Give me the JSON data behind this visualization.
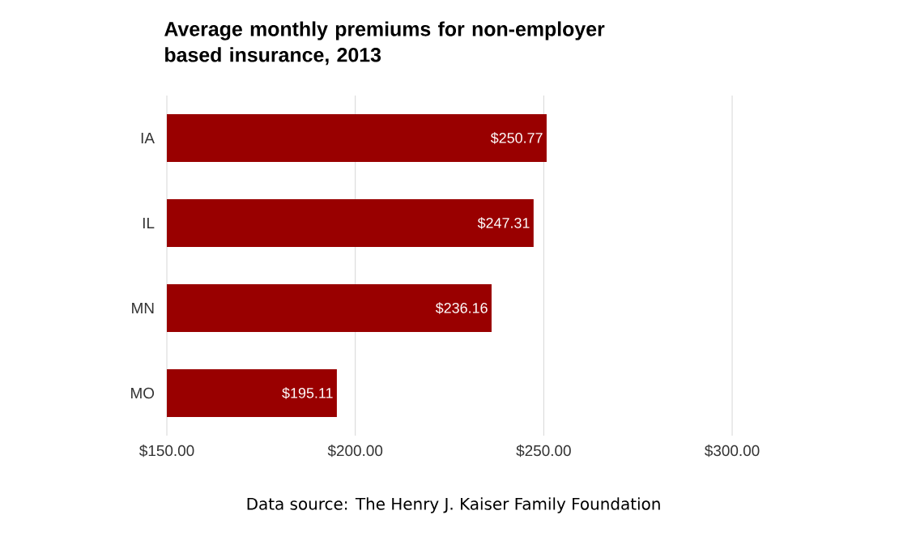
{
  "chart_data": {
    "type": "bar",
    "orientation": "horizontal",
    "title": "Average monthly premiums for non-employer based insurance, 2013",
    "categories": [
      "IA",
      "IL",
      "MN",
      "MO"
    ],
    "values": [
      250.77,
      247.31,
      236.16,
      195.11
    ],
    "value_labels": [
      "$250.77",
      "$247.31",
      "$236.16",
      "$195.11"
    ],
    "color": "#990000",
    "xlim": [
      150,
      300
    ],
    "xticks": [
      {
        "value": 150,
        "label": "$150.00"
      },
      {
        "value": 200,
        "label": "$200.00"
      },
      {
        "value": 250,
        "label": "$250.00"
      },
      {
        "value": 300,
        "label": "$300.00"
      }
    ],
    "grid": "x",
    "annotations": [
      "Data source: The Henry J. Kaiser Family Foundation"
    ]
  }
}
